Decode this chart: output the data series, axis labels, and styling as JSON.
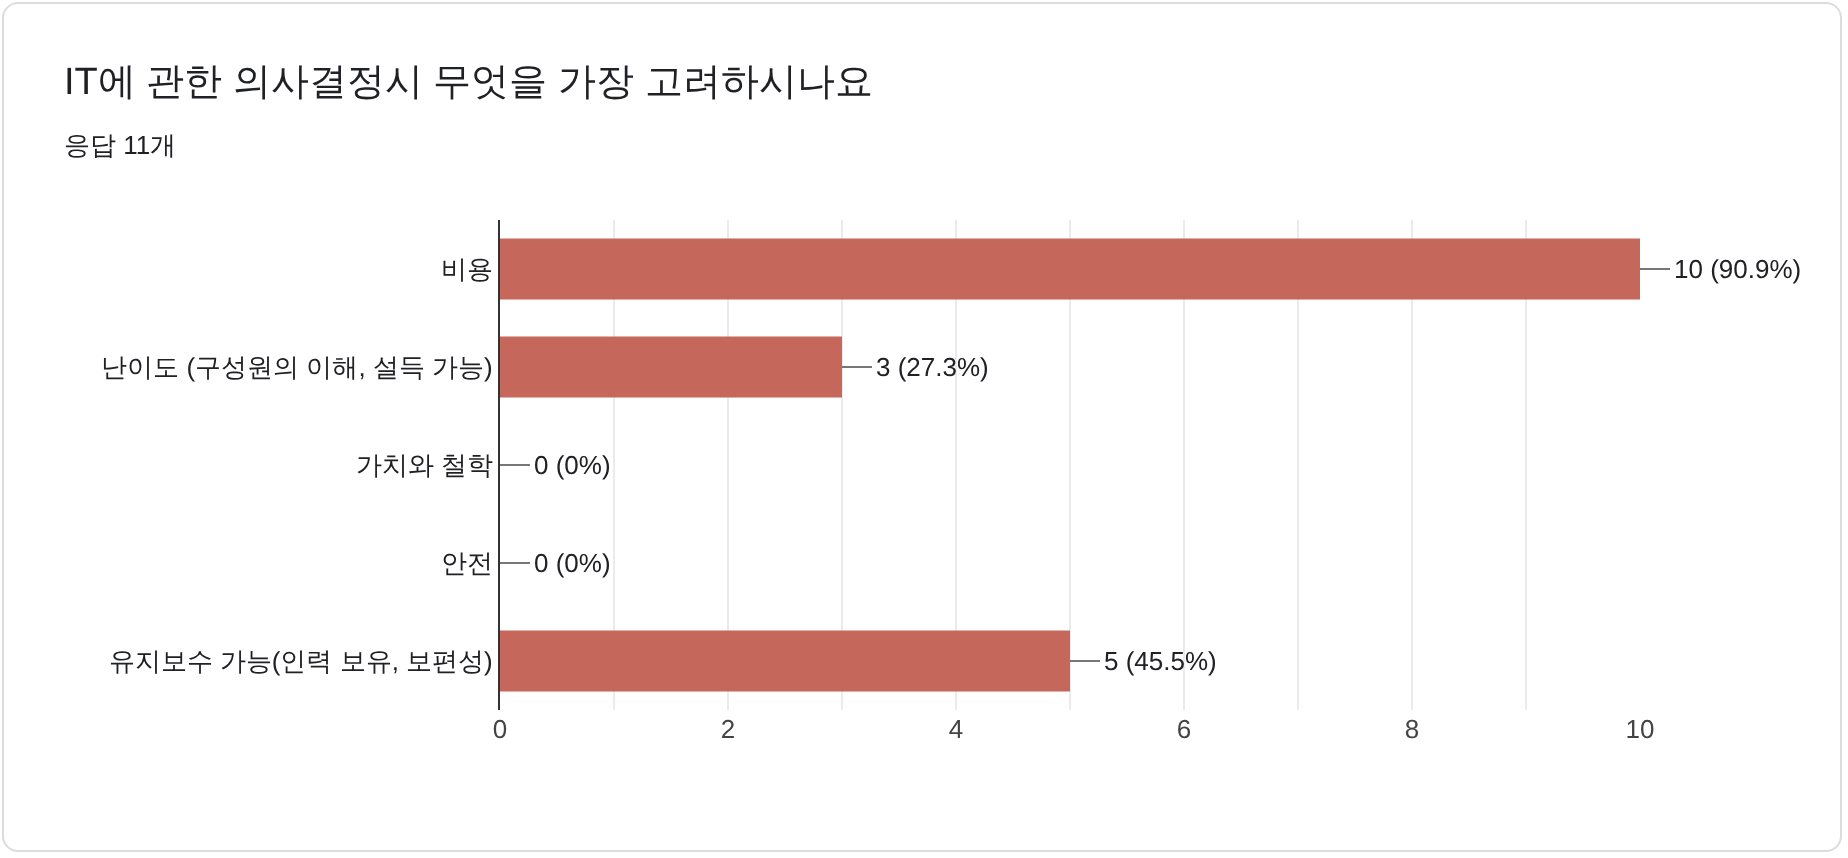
{
  "chart_data": {
    "type": "bar",
    "orientation": "horizontal",
    "title": "IT에 관한 의사결정시 무엇을 가장 고려하시나요",
    "subtitle": "응답 11개",
    "categories": [
      "비용",
      "난이도 (구성원의 이해, 설득 가능)",
      "가치와 철학",
      "안전",
      "유지보수 가능(인력 보유, 보편성)"
    ],
    "values": [
      10,
      3,
      0,
      0,
      5
    ],
    "color": "#c5675a",
    "value_labels": [
      "10 (90.9%)",
      "3 (27.3%)",
      "0 (0%)",
      "0 (0%)",
      "5 (45.5%)"
    ],
    "xlim": [
      0,
      10
    ],
    "xticks": [
      0,
      {
        "value": 1,
        "label": null
      },
      2,
      {
        "value": 3,
        "label": null
      },
      4,
      {
        "value": 5,
        "label": null
      },
      6,
      {
        "value": 7,
        "label": null
      },
      8,
      {
        "value": 9,
        "label": null
      },
      10
    ],
    "grid": "x"
  }
}
